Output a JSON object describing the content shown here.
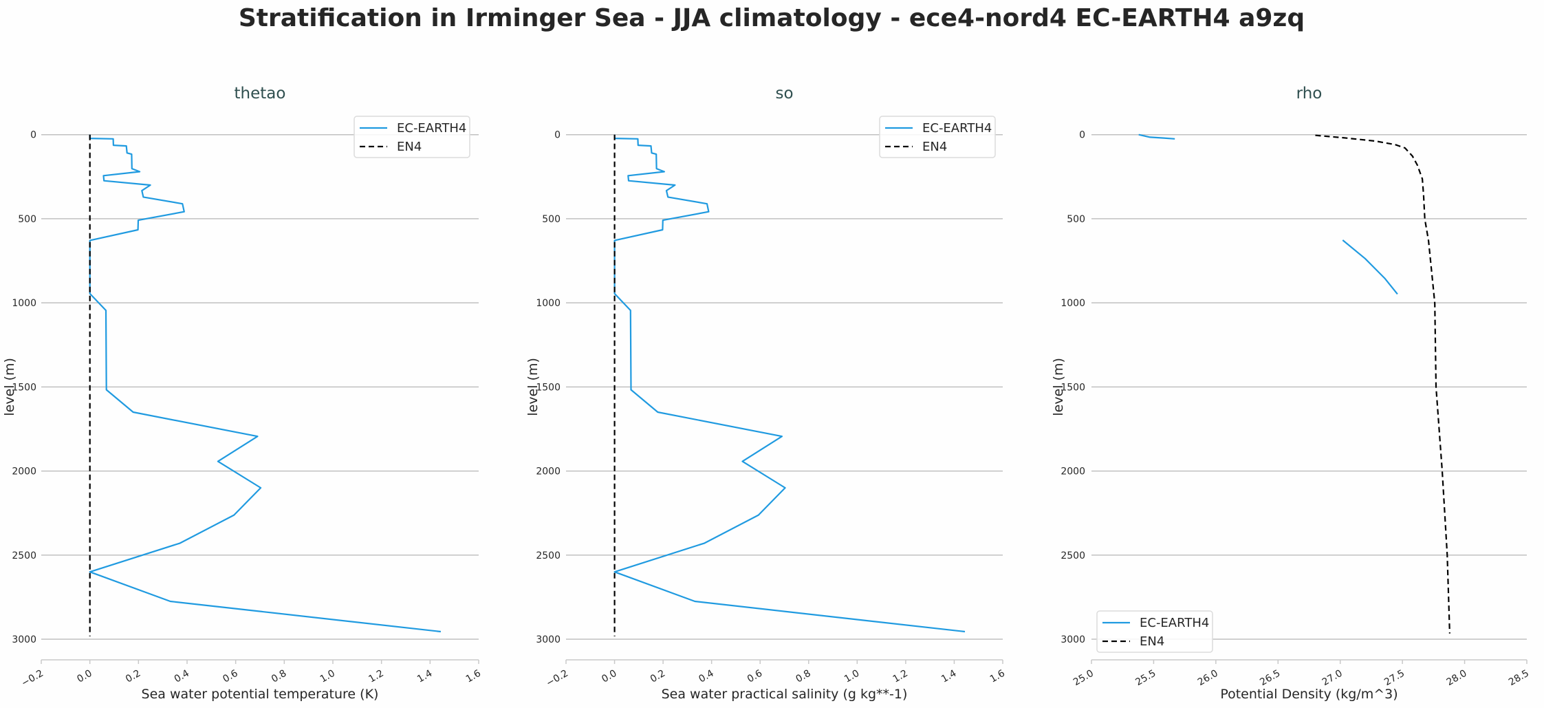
{
  "title": "Stratification in Irminger Sea - JJA climatology - ece4-nord4 EC-EARTH4 a9zq",
  "colors": {
    "model": "#1f9ae0",
    "reference": "#000000",
    "grid": "#c0c0c0",
    "subtitle": "#2f4f4f"
  },
  "chart_data": [
    {
      "type": "line",
      "title": "thetao",
      "xlabel": "Sea water potential temperature (K)",
      "ylabel": "level (m)",
      "xlim": [
        -0.2,
        1.6
      ],
      "ylim": [
        3000,
        0
      ],
      "y_inverted": true,
      "grid": "horizontal",
      "xticks": [
        -0.2,
        0.0,
        0.2,
        0.4,
        0.6,
        0.8,
        1.0,
        1.2,
        1.4,
        1.6
      ],
      "xtick_labels": [
        "−0.2",
        "0.0",
        "0.2",
        "0.4",
        "0.6",
        "0.8",
        "1.0",
        "1.2",
        "1.4",
        "1.6"
      ],
      "yticks": [
        0,
        500,
        1000,
        1500,
        2000,
        2500,
        3000
      ],
      "ytick_labels": [
        "0",
        "500",
        "1000",
        "1500",
        "2000",
        "2500",
        "3000"
      ],
      "legend": "top-right",
      "series": [
        {
          "name": "EC-EARTH4",
          "style": "solid",
          "color": "#1f9ae0",
          "segments": [
            [
              [
                0,
                0
              ],
              [
                0,
                22
              ],
              [
                0.096,
                25
              ],
              [
                0.097,
                63
              ],
              [
                0.15,
                67
              ],
              [
                0.153,
                109
              ],
              [
                0.172,
                116
              ],
              [
                0.173,
                202
              ],
              [
                0.205,
                220
              ],
              [
                0.056,
                244
              ],
              [
                0.058,
                274
              ],
              [
                0.249,
                300
              ],
              [
                0.214,
                333
              ],
              [
                0.22,
                371
              ],
              [
                0.381,
                411
              ],
              [
                0.388,
                458
              ],
              [
                0.199,
                509
              ],
              [
                0.198,
                566
              ],
              [
                0,
                629
              ],
              [
                0,
                945
              ],
              [
                0.066,
                1045
              ],
              [
                0.068,
                1517
              ],
              [
                0.178,
                1650
              ],
              [
                0.69,
                1794
              ],
              [
                0.527,
                1943
              ],
              [
                0.703,
                2100
              ],
              [
                0.593,
                2262
              ],
              [
                0.371,
                2429
              ],
              [
                0,
                2600
              ],
              [
                0.331,
                2775
              ],
              [
                1.444,
                2955
              ]
            ]
          ]
        },
        {
          "name": "EN4",
          "style": "dashed",
          "color": "#000000",
          "segments": [
            [
              [
                0,
                0
              ],
              [
                0,
                2983
              ]
            ]
          ]
        }
      ]
    },
    {
      "type": "line",
      "title": "so",
      "xlabel": "Sea water practical salinity (g kg**-1)",
      "ylabel": "level (m)",
      "xlim": [
        -0.2,
        1.6
      ],
      "ylim": [
        3000,
        0
      ],
      "y_inverted": true,
      "grid": "horizontal",
      "xticks": [
        -0.2,
        0.0,
        0.2,
        0.4,
        0.6,
        0.8,
        1.0,
        1.2,
        1.4,
        1.6
      ],
      "xtick_labels": [
        "−0.2",
        "0.0",
        "0.2",
        "0.4",
        "0.6",
        "0.8",
        "1.0",
        "1.2",
        "1.4",
        "1.6"
      ],
      "yticks": [
        0,
        500,
        1000,
        1500,
        2000,
        2500,
        3000
      ],
      "ytick_labels": [
        "0",
        "500",
        "1000",
        "1500",
        "2000",
        "2500",
        "3000"
      ],
      "legend": "top-right",
      "series": [
        {
          "name": "EC-EARTH4",
          "style": "solid",
          "color": "#1f9ae0",
          "segments": [
            [
              [
                0,
                0
              ],
              [
                0,
                22
              ],
              [
                0.096,
                25
              ],
              [
                0.097,
                63
              ],
              [
                0.15,
                67
              ],
              [
                0.153,
                109
              ],
              [
                0.172,
                116
              ],
              [
                0.173,
                202
              ],
              [
                0.205,
                220
              ],
              [
                0.056,
                244
              ],
              [
                0.058,
                274
              ],
              [
                0.249,
                300
              ],
              [
                0.214,
                333
              ],
              [
                0.22,
                371
              ],
              [
                0.381,
                411
              ],
              [
                0.388,
                458
              ],
              [
                0.199,
                509
              ],
              [
                0.198,
                566
              ],
              [
                0,
                629
              ],
              [
                0,
                945
              ],
              [
                0.066,
                1045
              ],
              [
                0.068,
                1517
              ],
              [
                0.178,
                1650
              ],
              [
                0.69,
                1794
              ],
              [
                0.527,
                1943
              ],
              [
                0.703,
                2100
              ],
              [
                0.593,
                2262
              ],
              [
                0.371,
                2429
              ],
              [
                0,
                2600
              ],
              [
                0.331,
                2775
              ],
              [
                1.444,
                2955
              ]
            ]
          ]
        },
        {
          "name": "EN4",
          "style": "dashed",
          "color": "#000000",
          "segments": [
            [
              [
                0,
                0
              ],
              [
                0,
                2983
              ]
            ]
          ]
        }
      ]
    },
    {
      "type": "line",
      "title": "rho",
      "xlabel": "Potential Density (kg/m^3)",
      "ylabel": "level (m)",
      "xlim": [
        25.0,
        28.5
      ],
      "ylim": [
        3000,
        0
      ],
      "y_inverted": true,
      "grid": "horizontal",
      "xticks": [
        25.0,
        25.5,
        26.0,
        26.5,
        27.0,
        27.5,
        28.0,
        28.5
      ],
      "xtick_labels": [
        "25.0",
        "25.5",
        "26.0",
        "26.5",
        "27.0",
        "27.5",
        "28.0",
        "28.5"
      ],
      "yticks": [
        0,
        500,
        1000,
        1500,
        2000,
        2500,
        3000
      ],
      "ytick_labels": [
        "0",
        "500",
        "1000",
        "1500",
        "2000",
        "2500",
        "3000"
      ],
      "legend": "bottom-left",
      "series": [
        {
          "name": "EC-EARTH4",
          "style": "solid",
          "color": "#1f9ae0",
          "segments": [
            [
              [
                25.38,
                0
              ],
              [
                25.47,
                15
              ],
              [
                25.58,
                20
              ],
              [
                25.67,
                25
              ]
            ],
            [
              [
                27.02,
                627
              ],
              [
                27.2,
                737
              ],
              [
                27.25,
                774
              ],
              [
                27.36,
                856
              ],
              [
                27.46,
                948
              ]
            ]
          ]
        },
        {
          "name": "EN4",
          "style": "dashed",
          "color": "#000000",
          "segments": [
            [
              [
                26.8,
                4
              ],
              [
                27.02,
                18
              ],
              [
                27.28,
                38
              ],
              [
                27.44,
                59
              ],
              [
                27.52,
                79
              ],
              [
                27.58,
                127
              ],
              [
                27.62,
                181
              ],
              [
                27.66,
                263
              ],
              [
                27.67,
                359
              ],
              [
                27.68,
                502
              ],
              [
                27.71,
                631
              ],
              [
                27.74,
                850
              ],
              [
                27.76,
                1001
              ],
              [
                27.77,
                1500
              ],
              [
                27.82,
                2000
              ],
              [
                27.86,
                2500
              ],
              [
                27.88,
                2966
              ]
            ]
          ]
        }
      ]
    }
  ]
}
